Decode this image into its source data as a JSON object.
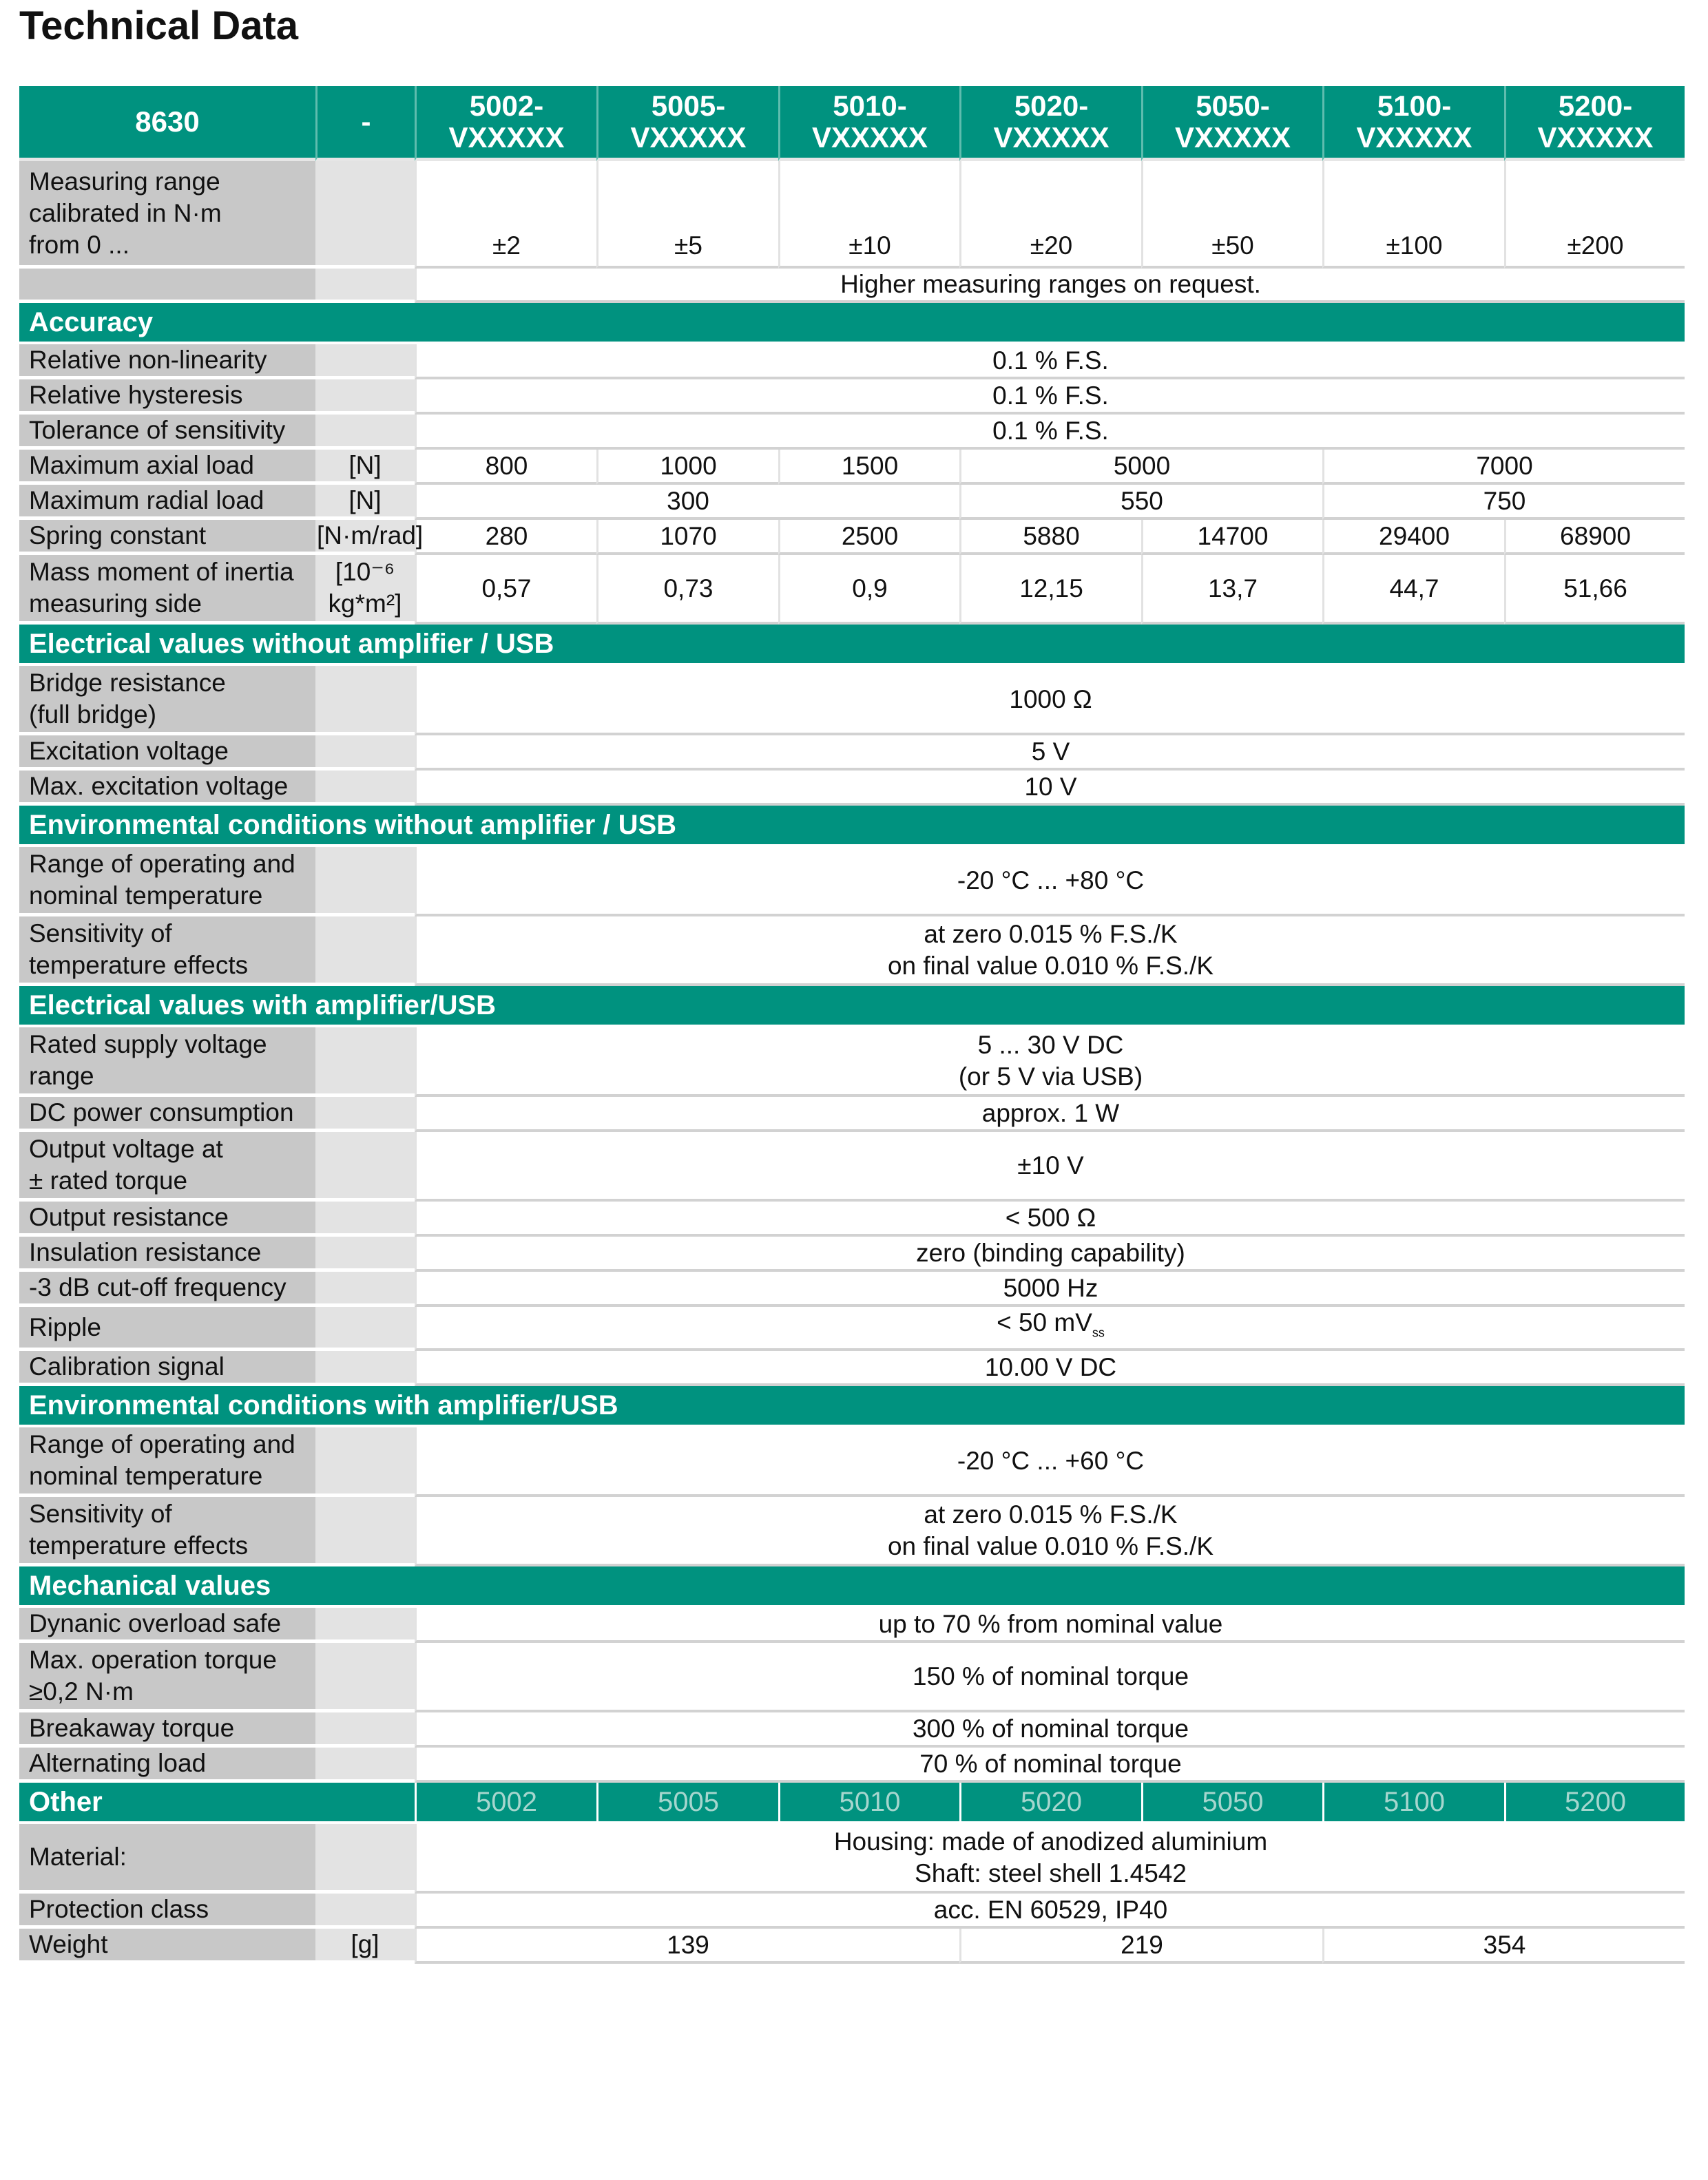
{
  "title": "Technical Data",
  "header": {
    "model": "8630",
    "unit": "-",
    "variants": [
      "5002-\nVXXXXX",
      "5005-\nVXXXXX",
      "5010-\nVXXXXX",
      "5020-\nVXXXXX",
      "5050-\nVXXXXX",
      "5100-\nVXXXXX",
      "5200-\nVXXXXX"
    ]
  },
  "colors": {
    "accent": "#00927f",
    "label_bg": "#c8c8c8",
    "unit_bg": "#e3e3e3",
    "other_numbers": "#a6d6ce"
  },
  "sections": [
    {
      "title": "",
      "rows": [
        {
          "label": "Measuring range\ncalibrated in N·m\nfrom 0 ...",
          "unit": "",
          "h": 3,
          "bottom": true,
          "cells": [
            {
              "t": "±2"
            },
            {
              "t": "±5"
            },
            {
              "t": "±10"
            },
            {
              "t": "±20"
            },
            {
              "t": "±50"
            },
            {
              "t": "±100"
            },
            {
              "t": "±200"
            }
          ]
        },
        {
          "label": "",
          "unit": "",
          "h": 1,
          "cells": [
            {
              "t": "Higher measuring ranges on request.",
              "s": 7
            }
          ]
        }
      ]
    },
    {
      "title": "Accuracy",
      "rows": [
        {
          "label": "Relative non-linearity",
          "unit": "",
          "h": 1,
          "cells": [
            {
              "t": "0.1 % F.S.",
              "s": 7
            }
          ]
        },
        {
          "label": "Relative hysteresis",
          "unit": "",
          "h": 1,
          "cells": [
            {
              "t": "0.1 % F.S.",
              "s": 7
            }
          ]
        },
        {
          "label": "Tolerance of sensitivity",
          "unit": "",
          "h": 1,
          "cells": [
            {
              "t": "0.1 % F.S.",
              "s": 7
            }
          ]
        },
        {
          "label": "Maximum axial load",
          "unit": "[N]",
          "h": 1,
          "cells": [
            {
              "t": "800"
            },
            {
              "t": "1000"
            },
            {
              "t": "1500"
            },
            {
              "t": "5000",
              "s": 2
            },
            {
              "t": "7000",
              "s": 2
            }
          ]
        },
        {
          "label": "Maximum radial load",
          "unit": "[N]",
          "h": 1,
          "cells": [
            {
              "t": "300",
              "s": 3
            },
            {
              "t": "550",
              "s": 2
            },
            {
              "t": "750",
              "s": 2
            }
          ]
        },
        {
          "label": "Spring constant",
          "unit": "[N·m/rad]",
          "h": 1,
          "cells": [
            {
              "t": "280"
            },
            {
              "t": "1070"
            },
            {
              "t": "2500"
            },
            {
              "t": "5880"
            },
            {
              "t": "14700"
            },
            {
              "t": "29400"
            },
            {
              "t": "68900"
            }
          ]
        },
        {
          "label": "Mass moment of inertia\nmeasuring side",
          "unit": "[10⁻⁶\nkg*m²]",
          "h": 2,
          "cells": [
            {
              "t": "0,57"
            },
            {
              "t": "0,73"
            },
            {
              "t": "0,9"
            },
            {
              "t": "12,15"
            },
            {
              "t": "13,7"
            },
            {
              "t": "44,7"
            },
            {
              "t": "51,66"
            }
          ]
        }
      ]
    },
    {
      "title": "Electrical values without amplifier / USB",
      "rows": [
        {
          "label": "Bridge resistance\n(full bridge)",
          "unit": "",
          "h": 2,
          "cells": [
            {
              "t": "1000 Ω",
              "s": 7
            }
          ]
        },
        {
          "label": "Excitation voltage",
          "unit": "",
          "h": 1,
          "cells": [
            {
              "t": "5 V",
              "s": 7
            }
          ]
        },
        {
          "label": "Max. excitation voltage",
          "unit": "",
          "h": 1,
          "cells": [
            {
              "t": "10 V",
              "s": 7
            }
          ]
        }
      ]
    },
    {
      "title": "Environmental conditions without amplifier / USB",
      "rows": [
        {
          "label": "Range of operating and\nnominal temperature",
          "unit": "",
          "h": 2,
          "cells": [
            {
              "t": "-20 °C ... +80 °C",
              "s": 7
            }
          ]
        },
        {
          "label": "Sensitivity of\ntemperature effects",
          "unit": "",
          "h": 2,
          "cells": [
            {
              "t": "at zero 0.015 % F.S./K\non final value 0.010 % F.S./K",
              "s": 7
            }
          ]
        }
      ]
    },
    {
      "title": "Electrical values with amplifier/USB",
      "rows": [
        {
          "label": "Rated supply voltage\nrange",
          "unit": "",
          "h": 2,
          "cells": [
            {
              "t": "5 ... 30 V DC\n(or 5 V via USB)",
              "s": 7
            }
          ]
        },
        {
          "label": "DC power consumption",
          "unit": "",
          "h": 1,
          "cells": [
            {
              "t": "approx. 1 W",
              "s": 7
            }
          ]
        },
        {
          "label": "Output voltage at\n± rated torque",
          "unit": "",
          "h": 2,
          "cells": [
            {
              "t": "±10 V",
              "s": 7
            }
          ]
        },
        {
          "label": "Output resistance",
          "unit": "",
          "h": 1,
          "cells": [
            {
              "t": "< 500 Ω",
              "s": 7
            }
          ]
        },
        {
          "label": "Insulation resistance",
          "unit": "",
          "h": 1,
          "cells": [
            {
              "t": "zero (binding capability)",
              "s": 7
            }
          ]
        },
        {
          "label": "-3 dB cut-off frequency",
          "unit": "",
          "h": 1,
          "cells": [
            {
              "t": "5000 Hz",
              "s": 7
            }
          ]
        },
        {
          "label": "Ripple",
          "unit": "",
          "h": 1,
          "cells": [
            {
              "t": "< 50 mV",
              "sub": "ss",
              "s": 7
            }
          ]
        },
        {
          "label": "Calibration signal",
          "unit": "",
          "h": 1,
          "cells": [
            {
              "t": "10.00 V DC",
              "s": 7
            }
          ]
        }
      ]
    },
    {
      "title": "Environmental conditions with amplifier/USB",
      "rows": [
        {
          "label": "Range of operating and\nnominal temperature",
          "unit": "",
          "h": 2,
          "cells": [
            {
              "t": "-20 °C ... +60 °C",
              "s": 7
            }
          ]
        },
        {
          "label": "Sensitivity of\ntemperature effects",
          "unit": "",
          "h": 2,
          "cells": [
            {
              "t": "at zero 0.015 % F.S./K\non final value 0.010 % F.S./K",
              "s": 7
            }
          ]
        }
      ]
    },
    {
      "title": "Mechanical values",
      "rows": [
        {
          "label": "Dynanic overload safe",
          "unit": "",
          "h": 1,
          "cells": [
            {
              "t": "up to 70 % from nominal value",
              "s": 7
            }
          ]
        },
        {
          "label": "Max. operation torque\n≥0,2 N·m",
          "unit": "",
          "h": 2,
          "cells": [
            {
              "t": "150 % of nominal torque",
              "s": 7
            }
          ]
        },
        {
          "label": "Breakaway torque",
          "unit": "",
          "h": 1,
          "cells": [
            {
              "t": "300 % of nominal torque",
              "s": 7
            }
          ]
        },
        {
          "label": "Alternating load",
          "unit": "",
          "h": 1,
          "cells": [
            {
              "t": "70 % of nominal torque",
              "s": 7
            }
          ]
        }
      ]
    },
    {
      "title": "Other",
      "cols": [
        "5002",
        "5005",
        "5010",
        "5020",
        "5050",
        "5100",
        "5200"
      ],
      "rows": [
        {
          "label": "Material:",
          "unit": "",
          "h": 2,
          "cells": [
            {
              "t": "Housing: made of anodized aluminium\nShaft: steel shell 1.4542",
              "s": 7
            }
          ]
        },
        {
          "label": "Protection class",
          "unit": "",
          "h": 1,
          "cells": [
            {
              "t": "acc. EN 60529, IP40",
              "s": 7
            }
          ]
        },
        {
          "label": "Weight",
          "unit": "[g]",
          "h": 1,
          "cells": [
            {
              "t": "139",
              "s": 3
            },
            {
              "t": "219",
              "s": 2
            },
            {
              "t": "354",
              "s": 2
            }
          ]
        }
      ]
    }
  ]
}
